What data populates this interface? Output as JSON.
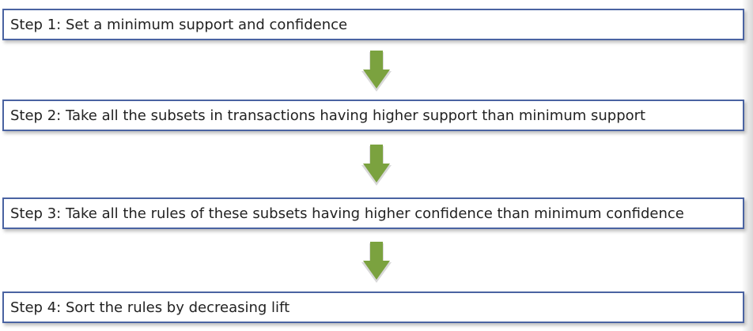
{
  "steps": [
    {
      "label": "Step 1: Set a minimum support and confidence"
    },
    {
      "label": "Step 2: Take all the subsets in transactions having higher support than minimum support"
    },
    {
      "label": "Step 3: Take all the rules of these subsets having higher confidence than minimum confidence"
    },
    {
      "label": "Step 4: Sort the rules by decreasing lift"
    }
  ],
  "colors": {
    "box_border": "#4a63a2",
    "arrow_fill": "#7ba23f",
    "text": "#222222"
  },
  "icons": {
    "connector": "down-arrow-icon"
  }
}
